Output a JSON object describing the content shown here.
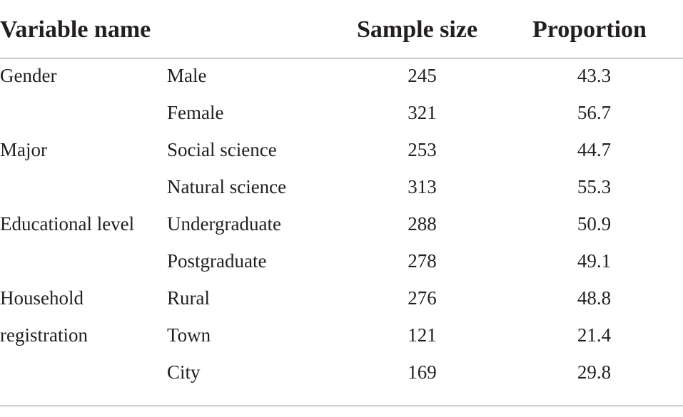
{
  "table": {
    "headers": {
      "variable": "Variable name",
      "sample_size": "Sample size",
      "proportion": "Proportion"
    },
    "rows": [
      {
        "variable": "Gender",
        "category": "Male",
        "sample_size": "245",
        "proportion": "43.3"
      },
      {
        "variable": "",
        "category": "Female",
        "sample_size": "321",
        "proportion": "56.7"
      },
      {
        "variable": "Major",
        "category": "Social science",
        "sample_size": "253",
        "proportion": "44.7"
      },
      {
        "variable": "",
        "category": "Natural science",
        "sample_size": "313",
        "proportion": "55.3"
      },
      {
        "variable": "Educational level",
        "category": "Undergraduate",
        "sample_size": "288",
        "proportion": "50.9"
      },
      {
        "variable": "",
        "category": "Postgraduate",
        "sample_size": "278",
        "proportion": "49.1"
      },
      {
        "variable": "Household",
        "category": "Rural",
        "sample_size": "276",
        "proportion": "48.8"
      },
      {
        "variable": "registration",
        "category": "Town",
        "sample_size": "121",
        "proportion": "21.4"
      },
      {
        "variable": "",
        "category": "City",
        "sample_size": "169",
        "proportion": "29.8"
      }
    ]
  }
}
